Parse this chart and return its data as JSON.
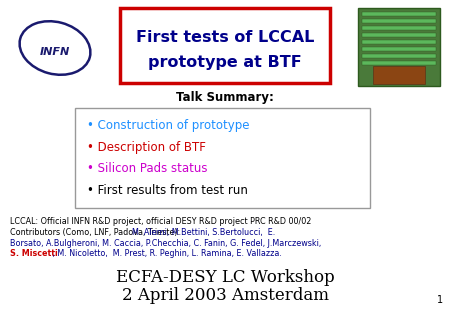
{
  "title_line1": "First tests of LCCAL",
  "title_line2": "prototype at BTF",
  "title_color": "#00008B",
  "title_box_edge_color": "#CC0000",
  "talk_summary_label": "Talk Summary:",
  "bullet_items": [
    {
      "text": "Construction of prototype",
      "color": "#1E90FF"
    },
    {
      "text": "Description of BTF",
      "color": "#CC0000"
    },
    {
      "text": "Silicon Pads status",
      "color": "#CC00CC"
    },
    {
      "text": "First results from test run",
      "color": "#000000"
    }
  ],
  "lccal_line1": "LCCAL: Official INFN R&D project, official DESY R&D project PRC R&D 00/02",
  "lccal_line2_black": "Contributors (Como, LNF, Padova, Trieste): ",
  "lccal_line2_blue": "M. Alemi, M.Bettini, S.Bertolucci,  E.",
  "lccal_line3_blue": "Borsato, A.Bulgheroni, M. Caccia, P.Checchia, C. Fanin, G. Fedel, J.Marczewski,",
  "lccal_line4_red": "S. Miscetti",
  "lccal_line4_blue": " , M. Nicoletto,  M. Prest, R. Peghin, L. Ramina, E. Vallazza.",
  "footer_line1": "ECFA-DESY LC Workshop",
  "footer_line2": "2 April 2003 Amsterdam",
  "bg_color": "#FFFFFF",
  "page_number": "1"
}
